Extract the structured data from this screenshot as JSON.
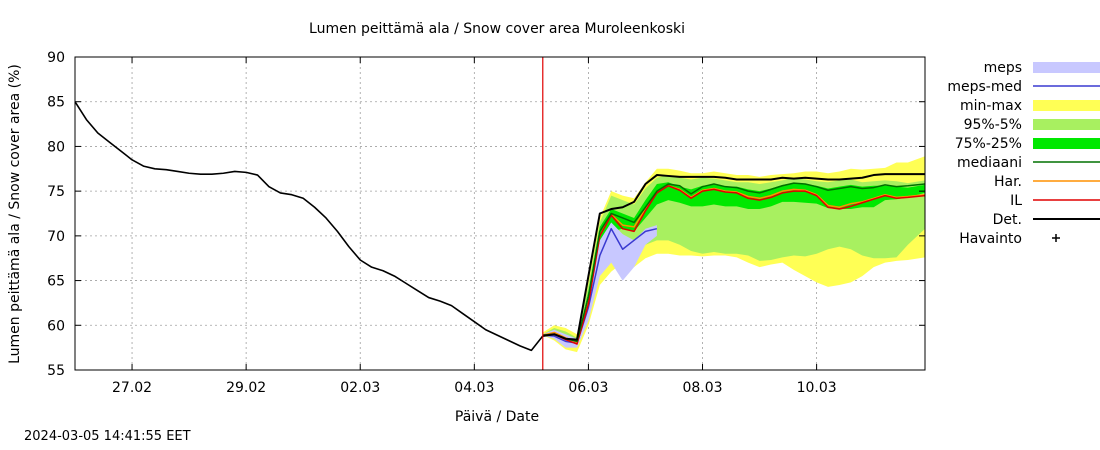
{
  "chart_data": {
    "type": "line",
    "title": "Lumen peittämä ala / Snow cover area Muroleenkoski",
    "xlabel": "Päivä / Date",
    "ylabel": "Lumen peittämä ala / Snow cover area (%)",
    "ylim": [
      55,
      90
    ],
    "xlim_days": [
      0,
      14.9
    ],
    "y_ticks": [
      55,
      60,
      65,
      70,
      75,
      80,
      85,
      90
    ],
    "x_ticks": [
      {
        "day": 1,
        "label": "27.02"
      },
      {
        "day": 3,
        "label": "29.02"
      },
      {
        "day": 5,
        "label": "02.03"
      },
      {
        "day": 7,
        "label": "04.03"
      },
      {
        "day": 9,
        "label": "06.03"
      },
      {
        "day": 11,
        "label": "08.03"
      },
      {
        "day": 13,
        "label": "10.03"
      }
    ],
    "grid": true,
    "legend_position": "right",
    "forecast_start_day": 8.2,
    "colors": {
      "meps": "#c8c8ff",
      "meps_med": "#3a3ad0",
      "min_max": "#ffff55",
      "p95_5": "#a8f060",
      "p75_25": "#00e800",
      "mediaani": "#007000",
      "har": "#ff9000",
      "il": "#e00000",
      "det": "#000000",
      "forecast_line": "#e00000",
      "grid": "#a0a0a0"
    },
    "legend": [
      {
        "key": "meps",
        "label": "meps",
        "kind": "band"
      },
      {
        "key": "meps_med",
        "label": "meps-med",
        "kind": "line"
      },
      {
        "key": "min_max",
        "label": "min-max",
        "kind": "band"
      },
      {
        "key": "p95_5",
        "label": "95%-5%",
        "kind": "band"
      },
      {
        "key": "p75_25",
        "label": "75%-25%",
        "kind": "band"
      },
      {
        "key": "mediaani",
        "label": "mediaani",
        "kind": "line"
      },
      {
        "key": "har",
        "label": "Har.",
        "kind": "line"
      },
      {
        "key": "il",
        "label": "IL",
        "kind": "line"
      },
      {
        "key": "det",
        "label": "Det.",
        "kind": "line"
      },
      {
        "key": "havainto",
        "label": "Havainto",
        "kind": "point"
      }
    ],
    "series": {
      "observed": {
        "name": "Det. (history)",
        "x": [
          0,
          0.2,
          0.4,
          0.6,
          0.8,
          1.0,
          1.2,
          1.4,
          1.6,
          1.8,
          2.0,
          2.2,
          2.4,
          2.6,
          2.8,
          3.0,
          3.2,
          3.4,
          3.6,
          3.8,
          4.0,
          4.2,
          4.4,
          4.6,
          4.8,
          5.0,
          5.2,
          5.4,
          5.6,
          5.8,
          6.0,
          6.2,
          6.4,
          6.6,
          6.8,
          7.0,
          7.2,
          7.4,
          7.6,
          7.8,
          8.0,
          8.2
        ],
        "y": [
          85,
          83,
          81.5,
          80.5,
          79.5,
          78.5,
          77.8,
          77.5,
          77.4,
          77.2,
          77.0,
          76.9,
          76.9,
          77.0,
          77.2,
          77.1,
          76.8,
          75.5,
          74.8,
          74.6,
          74.2,
          73.2,
          72.0,
          70.5,
          68.8,
          67.3,
          66.5,
          66.1,
          65.5,
          64.7,
          63.9,
          63.1,
          62.7,
          62.2,
          61.3,
          60.4,
          59.5,
          58.9,
          58.3,
          57.7,
          57.2,
          58.8
        ]
      },
      "forecast_x": [
        8.2,
        8.4,
        8.6,
        8.8,
        9.0,
        9.2,
        9.4,
        9.6,
        9.8,
        10.0,
        10.2,
        10.4,
        10.6,
        10.8,
        11.0,
        11.2,
        11.4,
        11.6,
        11.8,
        12.0,
        12.2,
        12.4,
        12.6,
        12.8,
        13.0,
        13.2,
        13.4,
        13.6,
        13.8,
        14.0,
        14.2,
        14.4,
        14.6,
        14.9
      ],
      "min_max": {
        "lo": [
          58.9,
          58.3,
          57.3,
          57.0,
          60.0,
          64.5,
          66.0,
          67.0,
          66.5,
          67.5,
          68.0,
          68.0,
          67.8,
          67.8,
          67.7,
          67.8,
          67.8,
          67.6,
          67.0,
          66.5,
          66.8,
          67.0,
          66.2,
          65.5,
          64.8,
          64.3,
          64.5,
          64.8,
          65.5,
          66.5,
          67.0,
          67.2,
          67.3,
          67.6
        ],
        "hi": [
          59.2,
          60.0,
          59.7,
          59.0,
          65.0,
          72.0,
          75.0,
          74.5,
          74.2,
          76.0,
          77.5,
          77.5,
          77.3,
          77.0,
          77.0,
          77.2,
          77.0,
          76.8,
          76.8,
          76.6,
          76.8,
          76.9,
          77.0,
          77.2,
          77.2,
          77.0,
          77.2,
          77.5,
          77.4,
          77.5,
          77.6,
          78.2,
          78.2,
          78.9
        ]
      },
      "p95_5": {
        "lo": [
          58.9,
          58.5,
          57.8,
          57.7,
          61.0,
          66.0,
          67.5,
          68.5,
          68.0,
          69.0,
          69.5,
          69.5,
          69.0,
          68.3,
          68.0,
          68.2,
          68.0,
          68.0,
          67.8,
          67.2,
          67.3,
          67.6,
          67.8,
          67.7,
          68.0,
          68.5,
          68.8,
          68.5,
          67.8,
          67.5,
          67.5,
          67.6,
          69.0,
          70.8
        ],
        "hi": [
          59.0,
          59.7,
          59.3,
          58.6,
          64.5,
          71.5,
          74.5,
          74.0,
          73.5,
          75.3,
          76.5,
          76.8,
          76.5,
          76.3,
          76.5,
          76.4,
          76.2,
          76.0,
          76.0,
          75.8,
          76.0,
          76.2,
          76.5,
          76.3,
          76.1,
          76.0,
          76.2,
          76.3,
          76.0,
          76.1,
          76.2,
          76.1,
          75.9,
          76.2
        ]
      },
      "p75_25": {
        "lo": [
          58.9,
          58.7,
          58.0,
          58.0,
          62.5,
          69.0,
          70.5,
          70.8,
          70.5,
          72.0,
          73.5,
          74.0,
          73.7,
          73.3,
          73.3,
          73.5,
          73.3,
          73.3,
          73.0,
          73.0,
          73.3,
          73.8,
          73.8,
          73.7,
          73.6,
          73.1,
          73.0,
          73.0,
          73.2,
          73.2,
          74.0,
          74.1,
          74.3,
          74.8
        ],
        "hi": [
          59.0,
          59.3,
          58.9,
          58.3,
          63.8,
          71.0,
          73.0,
          72.5,
          72.0,
          74.0,
          75.8,
          76.0,
          75.5,
          75.2,
          75.6,
          75.7,
          75.5,
          75.5,
          75.2,
          75.0,
          75.3,
          75.7,
          75.9,
          75.8,
          75.6,
          75.3,
          75.5,
          75.7,
          75.5,
          75.6,
          75.6,
          75.5,
          75.4,
          75.7
        ]
      },
      "meps": {
        "lo": [
          58.9,
          58.5,
          57.5,
          57.5,
          60.5,
          65.5,
          67.0,
          65.0,
          66.5,
          69.0,
          70.0
        ],
        "hi": [
          59.0,
          59.5,
          59.0,
          58.5,
          63.5,
          69.5,
          71.5,
          70.2,
          69.5,
          70.8,
          71.2
        ]
      },
      "meps_med": [
        58.9,
        58.8,
        58.2,
        58.0,
        62.0,
        67.8,
        70.8,
        68.5,
        69.5,
        70.5,
        70.8
      ],
      "mediaani": [
        58.9,
        59.0,
        58.5,
        58.2,
        63.2,
        70.5,
        72.5,
        72.0,
        71.5,
        73.2,
        75.0,
        75.8,
        75.6,
        74.7,
        75.5,
        75.8,
        75.5,
        75.4,
        75.0,
        74.8,
        75.2,
        75.6,
        75.9,
        75.8,
        75.5,
        75.1,
        75.3,
        75.5,
        75.3,
        75.4,
        75.7,
        75.5,
        75.6,
        75.8
      ],
      "har": [
        58.9,
        59.2,
        58.6,
        58.1,
        62.8,
        70.0,
        72.4,
        71.2,
        71.0,
        73.0,
        75.0,
        75.6,
        75.2,
        74.3,
        75.1,
        75.3,
        75.0,
        74.9,
        74.4,
        74.2,
        74.5,
        75.0,
        75.2,
        75.1,
        74.6,
        73.4,
        73.2,
        73.6,
        73.8,
        74.2,
        74.6,
        74.3,
        74.4,
        74.6
      ],
      "il": [
        58.9,
        59.0,
        58.4,
        57.9,
        62.4,
        70.0,
        72.3,
        70.8,
        70.5,
        72.8,
        74.8,
        75.6,
        75.1,
        74.2,
        75.0,
        75.2,
        74.9,
        74.8,
        74.2,
        74.0,
        74.3,
        74.8,
        75.0,
        75.0,
        74.5,
        73.2,
        73.0,
        73.3,
        73.7,
        74.1,
        74.5,
        74.2,
        74.3,
        74.5
      ],
      "det_forecast": [
        58.8,
        59.0,
        58.5,
        58.4,
        65.5,
        72.5,
        73.0,
        73.2,
        73.8,
        75.8,
        76.8,
        76.7,
        76.6,
        76.6,
        76.6,
        76.6,
        76.5,
        76.3,
        76.3,
        76.3,
        76.3,
        76.5,
        76.4,
        76.5,
        76.4,
        76.3,
        76.3,
        76.4,
        76.5,
        76.8,
        76.9,
        76.9,
        76.9,
        76.9
      ]
    }
  },
  "footer": {
    "timestamp": "2024-03-05 14:41:55 EET"
  }
}
